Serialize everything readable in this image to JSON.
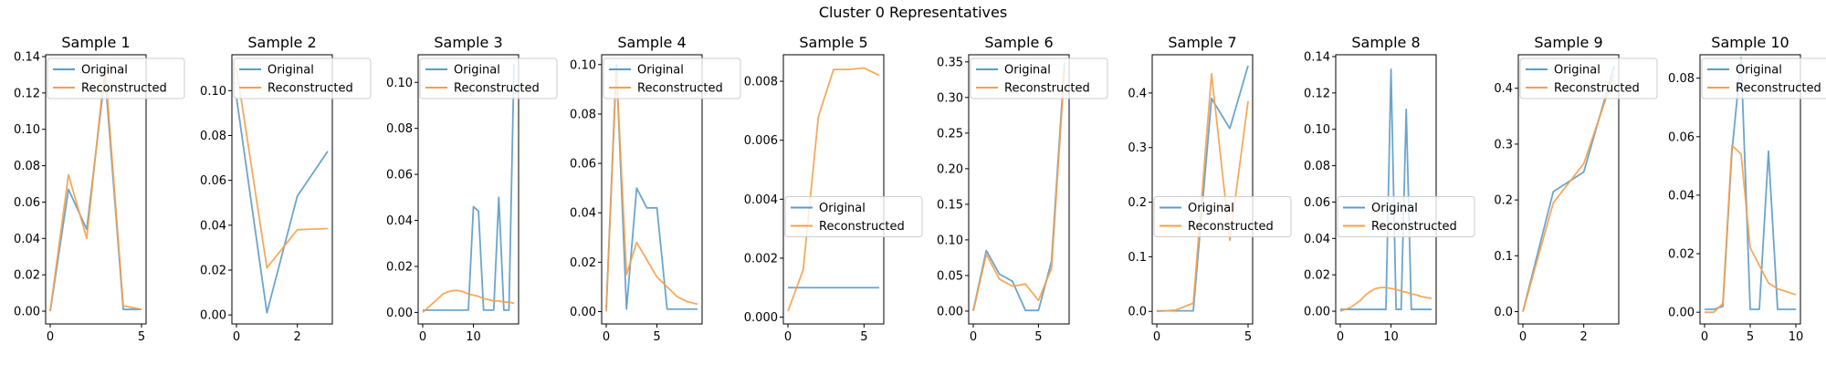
{
  "figure": {
    "suptitle": "Cluster 0 Representatives",
    "colors": {
      "original": "#5b9bc8",
      "reconstructed": "#f5a04a"
    }
  },
  "chart_data": [
    {
      "type": "line",
      "title": "Sample 1",
      "xlim": [
        -0.25,
        5.25
      ],
      "ylim": [
        -0.007,
        0.141
      ],
      "xticks": [
        0,
        5
      ],
      "yticks": [
        0.0,
        0.02,
        0.04,
        0.06,
        0.08,
        0.1,
        0.12,
        0.14
      ],
      "ytick_labels": [
        "0.00",
        "0.02",
        "0.04",
        "0.06",
        "0.08",
        "0.10",
        "0.12",
        "0.14"
      ],
      "legend": "upper-left",
      "series": [
        {
          "name": "Original",
          "x": [
            0,
            1,
            2,
            3,
            4,
            5
          ],
          "values": [
            0.0,
            0.067,
            0.045,
            0.13,
            0.001,
            0.001
          ]
        },
        {
          "name": "Reconstructed",
          "x": [
            0,
            1,
            2,
            3,
            4,
            5
          ],
          "values": [
            0.0,
            0.075,
            0.04,
            0.135,
            0.003,
            0.001
          ]
        }
      ]
    },
    {
      "type": "line",
      "title": "Sample 2",
      "xlim": [
        -0.15,
        3.15
      ],
      "ylim": [
        -0.004,
        0.116
      ],
      "xticks": [
        0,
        2
      ],
      "yticks": [
        0.0,
        0.02,
        0.04,
        0.06,
        0.08,
        0.1
      ],
      "ytick_labels": [
        "0.00",
        "0.02",
        "0.04",
        "0.06",
        "0.08",
        "0.10"
      ],
      "legend": "upper-left",
      "series": [
        {
          "name": "Original",
          "x": [
            0,
            1,
            2,
            3
          ],
          "values": [
            0.097,
            0.001,
            0.053,
            0.073
          ]
        },
        {
          "name": "Reconstructed",
          "x": [
            0,
            1,
            2,
            3
          ],
          "values": [
            0.11,
            0.021,
            0.038,
            0.0385
          ]
        }
      ]
    },
    {
      "type": "line",
      "title": "Sample 3",
      "xlim": [
        -0.9,
        18.9
      ],
      "ylim": [
        -0.005,
        0.112
      ],
      "xticks": [
        0,
        10
      ],
      "yticks": [
        0.0,
        0.02,
        0.04,
        0.06,
        0.08,
        0.1
      ],
      "ytick_labels": [
        "0.00",
        "0.02",
        "0.04",
        "0.06",
        "0.08",
        "0.10"
      ],
      "legend": "upper-left",
      "series": [
        {
          "name": "Original",
          "x": [
            0,
            1,
            2,
            3,
            4,
            5,
            6,
            7,
            8,
            9,
            10,
            11,
            12,
            13,
            14,
            15,
            16,
            17,
            18
          ],
          "values": [
            0.001,
            0.001,
            0.001,
            0.001,
            0.001,
            0.001,
            0.001,
            0.001,
            0.001,
            0.001,
            0.046,
            0.044,
            0.001,
            0.001,
            0.001,
            0.05,
            0.001,
            0.001,
            0.108
          ]
        },
        {
          "name": "Reconstructed",
          "x": [
            0,
            1,
            2,
            3,
            4,
            5,
            6,
            7,
            8,
            9,
            10,
            11,
            12,
            13,
            14,
            15,
            16,
            17,
            18
          ],
          "values": [
            0.0,
            0.002,
            0.004,
            0.006,
            0.008,
            0.009,
            0.0095,
            0.0095,
            0.009,
            0.008,
            0.0075,
            0.007,
            0.006,
            0.0055,
            0.005,
            0.005,
            0.0045,
            0.0045,
            0.004
          ]
        }
      ]
    },
    {
      "type": "line",
      "title": "Sample 4",
      "xlim": [
        -0.45,
        9.45
      ],
      "ylim": [
        -0.005,
        0.104
      ],
      "xticks": [
        0,
        5
      ],
      "yticks": [
        0.0,
        0.02,
        0.04,
        0.06,
        0.08,
        0.1
      ],
      "ytick_labels": [
        "0.00",
        "0.02",
        "0.04",
        "0.06",
        "0.08",
        "0.10"
      ],
      "legend": "upper-left",
      "series": [
        {
          "name": "Original",
          "x": [
            0,
            1,
            2,
            3,
            4,
            5,
            6,
            7,
            8,
            9
          ],
          "values": [
            0.001,
            0.1,
            0.001,
            0.05,
            0.042,
            0.042,
            0.001,
            0.001,
            0.001,
            0.001
          ]
        },
        {
          "name": "Reconstructed",
          "x": [
            0,
            1,
            2,
            3,
            4,
            5,
            6,
            7,
            8,
            9
          ],
          "values": [
            0.0,
            0.098,
            0.015,
            0.028,
            0.021,
            0.014,
            0.01,
            0.006,
            0.004,
            0.003
          ]
        }
      ]
    },
    {
      "type": "line",
      "title": "Sample 5",
      "xlim": [
        -0.3,
        6.3
      ],
      "ylim": [
        -0.00023,
        0.0089
      ],
      "xticks": [
        0,
        5
      ],
      "yticks": [
        0.0,
        0.002,
        0.004,
        0.006,
        0.008
      ],
      "ytick_labels": [
        "0.000",
        "0.002",
        "0.004",
        "0.006",
        "0.008"
      ],
      "legend": "center-left",
      "series": [
        {
          "name": "Original",
          "x": [
            0,
            1,
            2,
            3,
            4,
            5,
            6
          ],
          "values": [
            0.001,
            0.001,
            0.001,
            0.001,
            0.001,
            0.001,
            0.001
          ]
        },
        {
          "name": "Reconstructed",
          "x": [
            0,
            1,
            2,
            3,
            4,
            5,
            6
          ],
          "values": [
            0.0002,
            0.0016,
            0.0068,
            0.0084,
            0.0084,
            0.00845,
            0.0082
          ]
        }
      ]
    },
    {
      "type": "line",
      "title": "Sample 6",
      "xlim": [
        -0.35,
        7.35
      ],
      "ylim": [
        -0.018,
        0.36
      ],
      "xticks": [
        0,
        5
      ],
      "yticks": [
        0.0,
        0.05,
        0.1,
        0.15,
        0.2,
        0.25,
        0.3,
        0.35
      ],
      "ytick_labels": [
        "0.00",
        "0.05",
        "0.10",
        "0.15",
        "0.20",
        "0.25",
        "0.30",
        "0.35"
      ],
      "legend": "upper-left",
      "series": [
        {
          "name": "Original",
          "x": [
            0,
            1,
            2,
            3,
            4,
            5,
            6,
            7
          ],
          "values": [
            0.001,
            0.085,
            0.052,
            0.042,
            0.001,
            0.001,
            0.07,
            0.35
          ]
        },
        {
          "name": "Reconstructed",
          "x": [
            0,
            1,
            2,
            3,
            4,
            5,
            6,
            7
          ],
          "values": [
            0.0,
            0.08,
            0.045,
            0.035,
            0.038,
            0.015,
            0.06,
            0.34
          ]
        }
      ]
    },
    {
      "type": "line",
      "title": "Sample 7",
      "xlim": [
        -0.25,
        5.25
      ],
      "ylim": [
        -0.023,
        0.47
      ],
      "xticks": [
        0,
        5
      ],
      "yticks": [
        0.0,
        0.1,
        0.2,
        0.3,
        0.4
      ],
      "ytick_labels": [
        "0.0",
        "0.1",
        "0.2",
        "0.3",
        "0.4"
      ],
      "legend": "center-left",
      "series": [
        {
          "name": "Original",
          "x": [
            0,
            1,
            2,
            3,
            4,
            5
          ],
          "values": [
            0.001,
            0.001,
            0.001,
            0.39,
            0.335,
            0.45
          ]
        },
        {
          "name": "Reconstructed",
          "x": [
            0,
            1,
            2,
            3,
            4,
            5
          ],
          "values": [
            0.0,
            0.002,
            0.015,
            0.435,
            0.13,
            0.385
          ]
        }
      ]
    },
    {
      "type": "line",
      "title": "Sample 8",
      "xlim": [
        -0.9,
        18.9
      ],
      "ylim": [
        -0.007,
        0.141
      ],
      "xticks": [
        0,
        10
      ],
      "yticks": [
        0.0,
        0.02,
        0.04,
        0.06,
        0.08,
        0.1,
        0.12,
        0.14
      ],
      "ytick_labels": [
        "0.00",
        "0.02",
        "0.04",
        "0.06",
        "0.08",
        "0.10",
        "0.12",
        "0.14"
      ],
      "legend": "center-left",
      "series": [
        {
          "name": "Original",
          "x": [
            0,
            1,
            2,
            3,
            4,
            5,
            6,
            7,
            8,
            9,
            10,
            11,
            12,
            13,
            14,
            15,
            16,
            17,
            18
          ],
          "values": [
            0.001,
            0.001,
            0.001,
            0.001,
            0.001,
            0.001,
            0.001,
            0.001,
            0.001,
            0.001,
            0.133,
            0.001,
            0.001,
            0.111,
            0.001,
            0.001,
            0.001,
            0.001,
            0.001
          ]
        },
        {
          "name": "Reconstructed",
          "x": [
            0,
            1,
            2,
            3,
            4,
            5,
            6,
            7,
            8,
            9,
            10,
            11,
            12,
            13,
            14,
            15,
            16,
            17,
            18
          ],
          "values": [
            0.0,
            0.001,
            0.002,
            0.004,
            0.006,
            0.009,
            0.011,
            0.0125,
            0.013,
            0.013,
            0.0125,
            0.012,
            0.011,
            0.0105,
            0.0095,
            0.009,
            0.008,
            0.0075,
            0.007
          ]
        }
      ]
    },
    {
      "type": "line",
      "title": "Sample 9",
      "xlim": [
        -0.15,
        3.15
      ],
      "ylim": [
        -0.022,
        0.46
      ],
      "xticks": [
        0,
        2
      ],
      "yticks": [
        0.0,
        0.1,
        0.2,
        0.3,
        0.4
      ],
      "ytick_labels": [
        "0.0",
        "0.1",
        "0.2",
        "0.3",
        "0.4"
      ],
      "legend": "upper-left",
      "series": [
        {
          "name": "Original",
          "x": [
            0,
            1,
            2,
            3
          ],
          "values": [
            0.0,
            0.215,
            0.25,
            0.44
          ]
        },
        {
          "name": "Reconstructed",
          "x": [
            0,
            1,
            2,
            3
          ],
          "values": [
            0.0,
            0.195,
            0.265,
            0.425
          ]
        }
      ]
    },
    {
      "type": "line",
      "title": "Sample 10",
      "xlim": [
        -0.5,
        10.5
      ],
      "ylim": [
        -0.004,
        0.088
      ],
      "xticks": [
        0,
        5,
        10
      ],
      "yticks": [
        0.0,
        0.02,
        0.04,
        0.06,
        0.08
      ],
      "ytick_labels": [
        "0.00",
        "0.02",
        "0.04",
        "0.06",
        "0.08"
      ],
      "legend": "upper-left",
      "series": [
        {
          "name": "Original",
          "x": [
            0,
            1,
            2,
            3,
            4,
            5,
            6,
            7,
            8,
            9,
            10
          ],
          "values": [
            0.001,
            0.001,
            0.002,
            0.055,
            0.087,
            0.001,
            0.001,
            0.055,
            0.001,
            0.001,
            0.001
          ]
        },
        {
          "name": "Reconstructed",
          "x": [
            0,
            1,
            2,
            3,
            4,
            5,
            6,
            7,
            8,
            9,
            10
          ],
          "values": [
            0.0,
            0.0,
            0.003,
            0.057,
            0.054,
            0.022,
            0.016,
            0.01,
            0.008,
            0.007,
            0.006
          ]
        }
      ]
    }
  ]
}
